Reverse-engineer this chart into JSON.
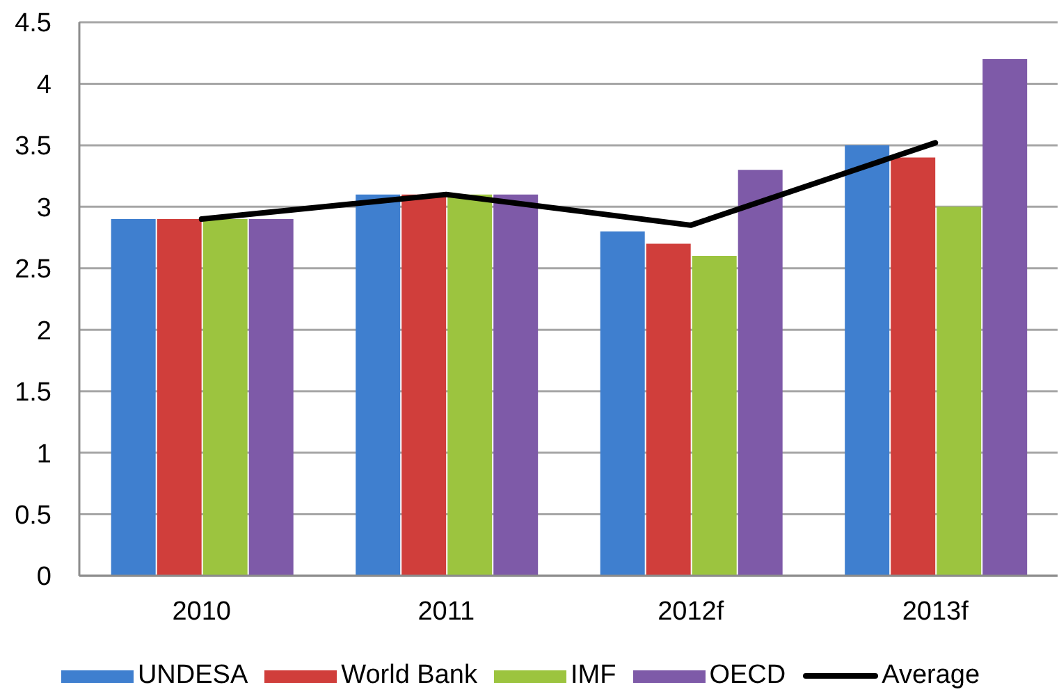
{
  "chart_data": {
    "type": "bar",
    "categories": [
      "2010",
      "2011",
      "2012f",
      "2013f"
    ],
    "series": [
      {
        "name": "UNDESA",
        "color": "#3f7fcf",
        "values": [
          2.9,
          3.1,
          2.8,
          3.5
        ]
      },
      {
        "name": "World Bank",
        "color": "#d03e3b",
        "values": [
          2.9,
          3.1,
          2.7,
          3.4
        ]
      },
      {
        "name": "IMF",
        "color": "#9cc43f",
        "values": [
          2.9,
          3.1,
          2.6,
          3.0
        ]
      },
      {
        "name": "OECD",
        "color": "#7e5aa8",
        "values": [
          2.9,
          3.1,
          3.3,
          4.2
        ]
      },
      {
        "name": "Average",
        "type": "line",
        "color": "#000000",
        "values": [
          2.9,
          3.1,
          2.85,
          3.52
        ]
      }
    ],
    "ylim": [
      0,
      4.5
    ],
    "yticks": [
      0,
      0.5,
      1,
      1.5,
      2,
      2.5,
      3,
      3.5,
      4,
      4.5
    ],
    "grid": "y",
    "legend": "bottom",
    "marker": "none",
    "line_style": "solid"
  }
}
